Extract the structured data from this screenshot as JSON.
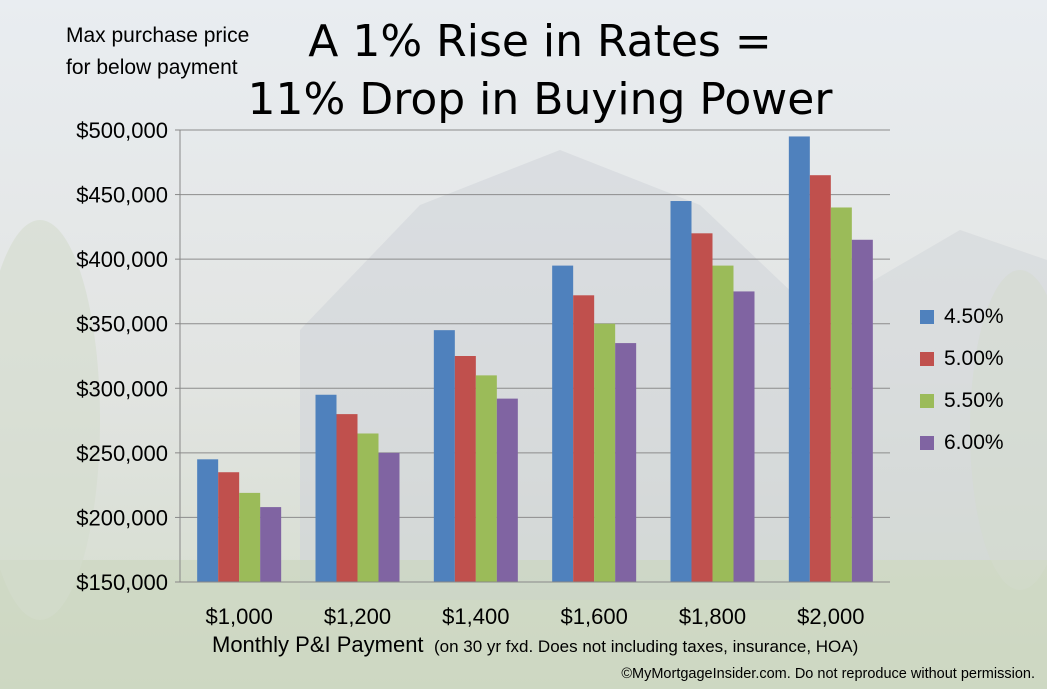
{
  "chart_data": {
    "type": "bar",
    "title_line1": "A 1% Rise in Rates =",
    "title_line2": "11% Drop in Buying Power",
    "ylabel": "Max purchase price for below payment",
    "xlabel": "Monthly P&I Payment",
    "xlabel_note": "(on 30 yr fxd. Does not including taxes, insurance, HOA)",
    "categories": [
      "$1,000",
      "$1,200",
      "$1,400",
      "$1,600",
      "$1,800",
      "$2,000"
    ],
    "ylim": [
      150000,
      500000
    ],
    "yticks": [
      150000,
      200000,
      250000,
      300000,
      350000,
      400000,
      450000,
      500000
    ],
    "ytick_labels": [
      "$150,000",
      "$200,000",
      "$250,000",
      "$300,000",
      "$350,000",
      "$400,000",
      "$450,000",
      "$500,000"
    ],
    "grid": true,
    "legend_position": "right",
    "series": [
      {
        "name": "4.50%",
        "color": "#4f81bd",
        "values": [
          245000,
          295000,
          345000,
          395000,
          445000,
          495000
        ]
      },
      {
        "name": "5.00%",
        "color": "#c0504d",
        "values": [
          235000,
          280000,
          325000,
          372000,
          420000,
          465000
        ]
      },
      {
        "name": "5.50%",
        "color": "#9bbb59",
        "values": [
          219000,
          265000,
          310000,
          350000,
          395000,
          440000
        ]
      },
      {
        "name": "6.00%",
        "color": "#8064a2",
        "values": [
          208000,
          250000,
          292000,
          335000,
          375000,
          415000
        ]
      }
    ]
  },
  "footer": {
    "copyright": "©MyMortgageInsider.com. Do not reproduce without permission."
  }
}
